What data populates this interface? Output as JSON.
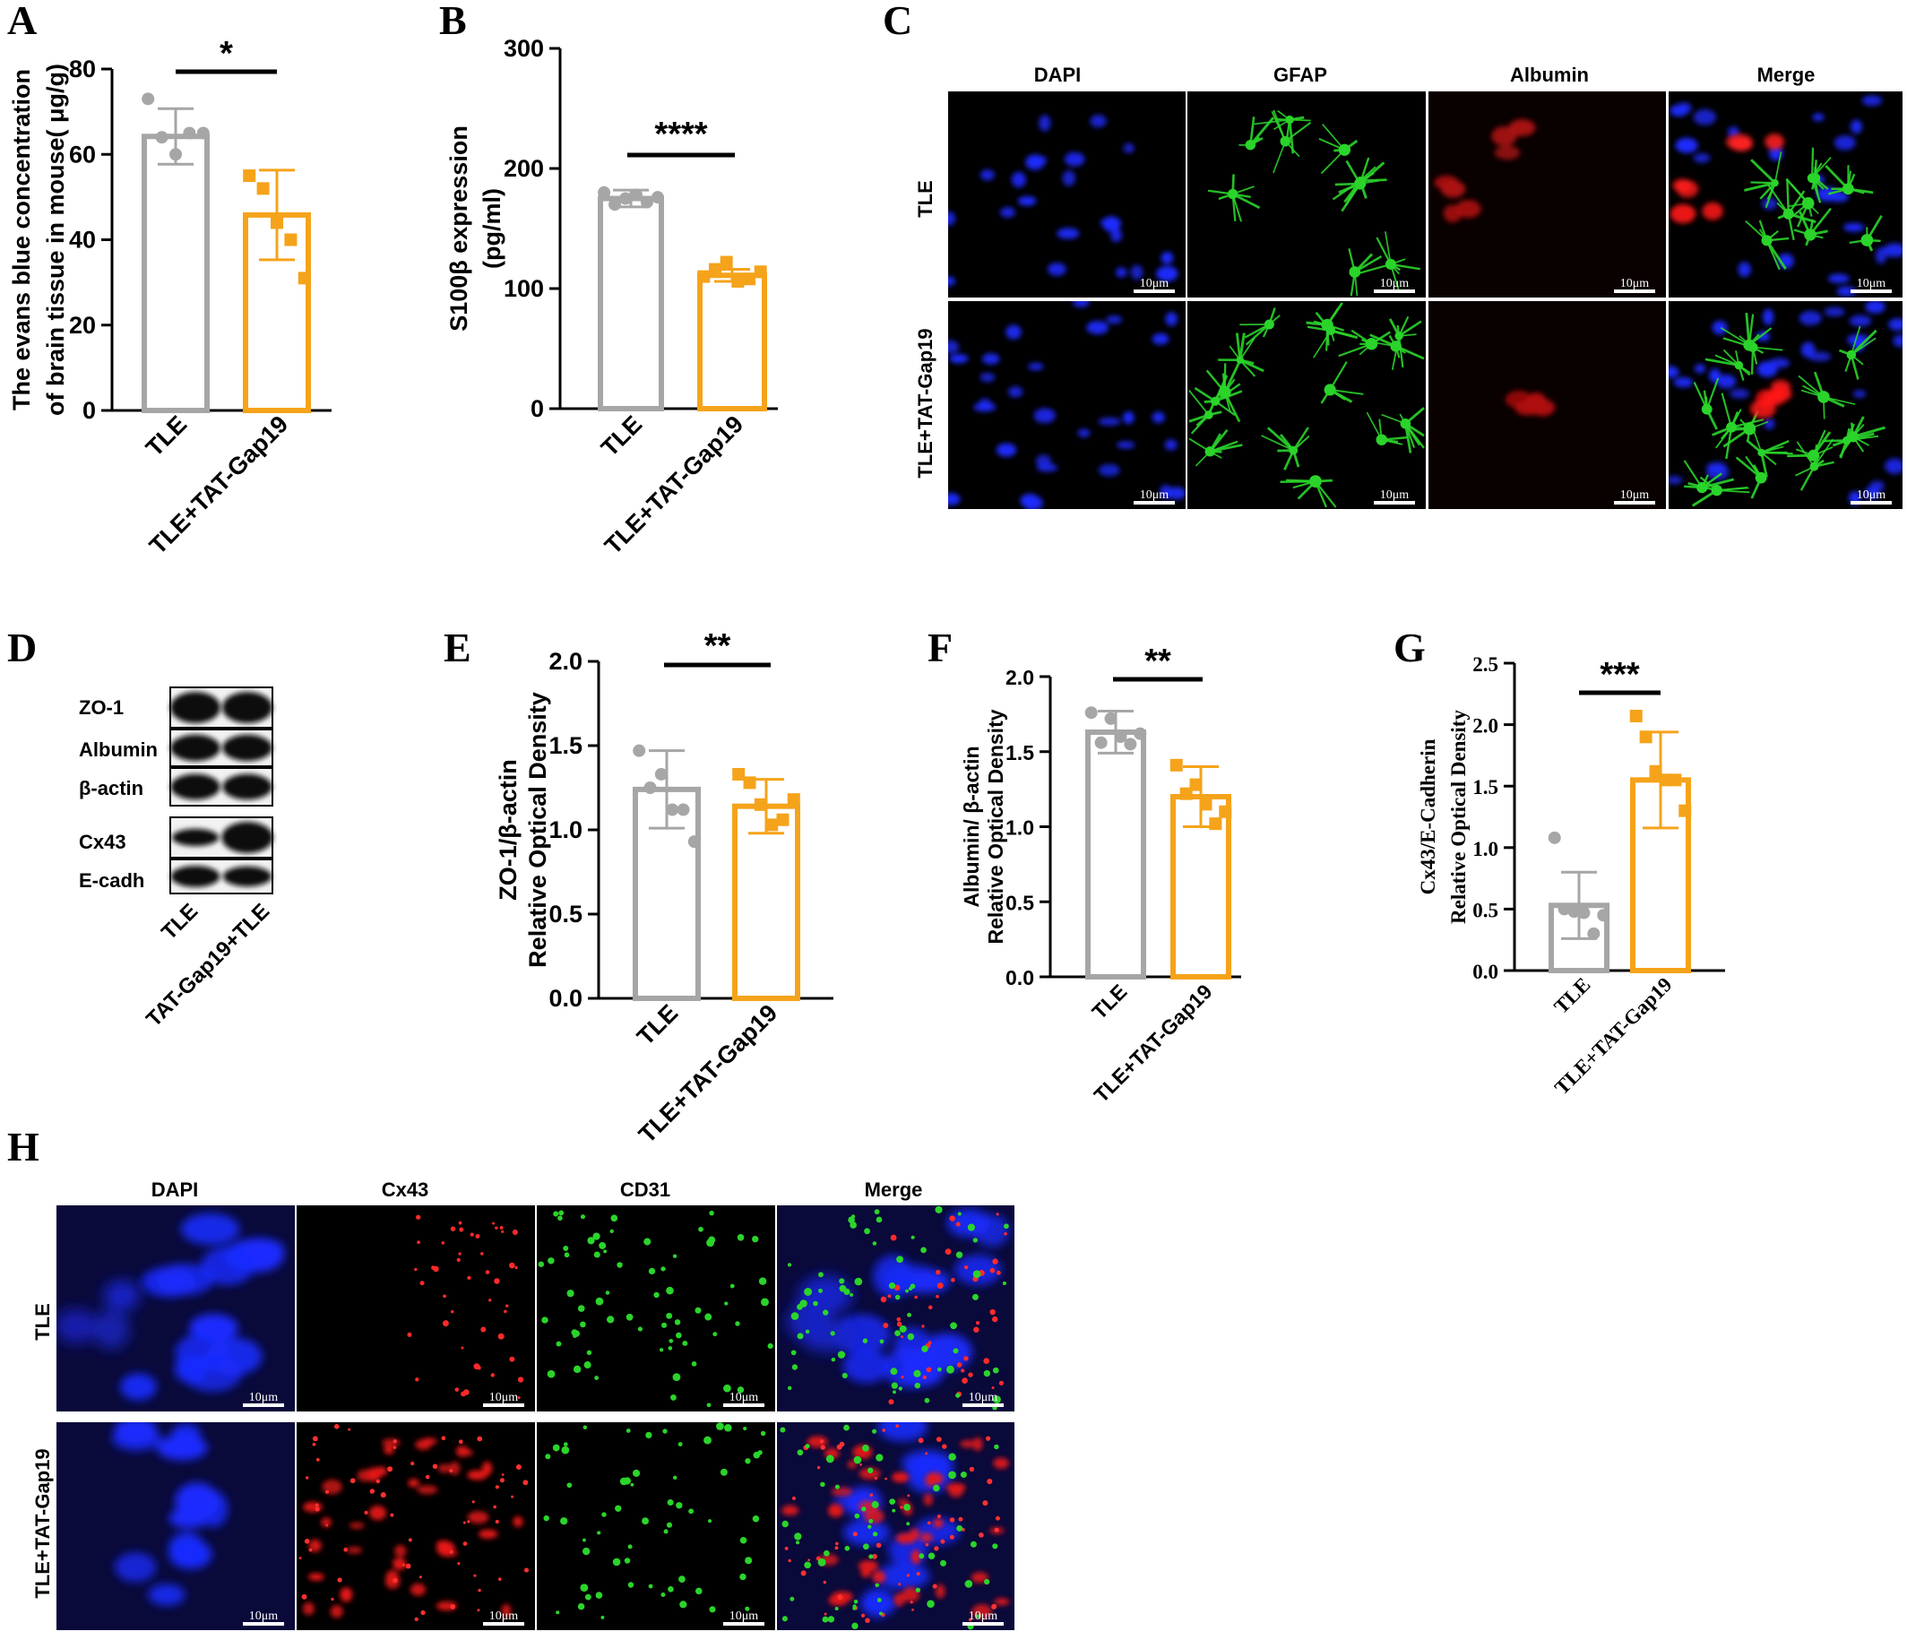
{
  "panel_letters": [
    "A",
    "B",
    "C",
    "D",
    "E",
    "F",
    "G",
    "H"
  ],
  "colors": {
    "tle": "#a6a6a6",
    "treat": "#f5a31a",
    "axis": "#000000"
  },
  "chart_data": [
    {
      "id": "A",
      "type": "bar",
      "ylabel_lines": [
        "The evans blue concentration",
        "of brain tissue in mouse( μg/g)"
      ],
      "yticks": [
        "0",
        "20",
        "40",
        "60",
        "80"
      ],
      "ylim": [
        0,
        80
      ],
      "categories": [
        "TLE",
        "TLE+TAT-Gap19"
      ],
      "values": [
        64.2,
        45.8
      ],
      "errors": [
        6.5,
        10.5
      ],
      "points": [
        [
          73,
          64,
          60,
          65,
          65
        ],
        [
          55,
          52,
          44,
          40,
          31
        ]
      ],
      "significance": "*"
    },
    {
      "id": "B",
      "type": "bar",
      "ylabel_lines": [
        "S100β expression",
        "(pg/ml)"
      ],
      "yticks": [
        "0",
        "100",
        "200",
        "300"
      ],
      "ylim": [
        0,
        300
      ],
      "categories": [
        "TLE",
        "TLE+TAT-Gap19"
      ],
      "values": [
        175,
        111
      ],
      "errors": [
        7,
        5
      ],
      "points": [
        [
          180,
          170,
          175,
          178,
          172,
          176
        ],
        [
          110,
          116,
          122,
          106,
          108,
          114
        ]
      ],
      "significance": "****"
    },
    {
      "id": "E",
      "type": "bar",
      "ylabel_lines": [
        "ZO-1/β-actin",
        "Relative Optical Density"
      ],
      "yticks": [
        "0.0",
        "0.5",
        "1.0",
        "1.5",
        "2.0"
      ],
      "ylim": [
        0,
        2.0
      ],
      "categories": [
        "TLE",
        "TLE+TAT-Gap19"
      ],
      "values": [
        1.24,
        1.14
      ],
      "errors": [
        0.23,
        0.16
      ],
      "points": [
        [
          1.47,
          1.25,
          1.33,
          1.12,
          1.12,
          0.93
        ],
        [
          1.33,
          1.28,
          1.15,
          1.03,
          1.06,
          1.18
        ]
      ],
      "significance": "**"
    },
    {
      "id": "F",
      "type": "bar",
      "ylabel_lines": [
        "Albumin/ β-actin",
        "Relative Optical Density"
      ],
      "yticks": [
        "0.0",
        "0.5",
        "1.0",
        "1.5",
        "2.0"
      ],
      "ylim": [
        0,
        2.0
      ],
      "categories": [
        "TLE",
        "TLE+TAT-Gap19"
      ],
      "values": [
        1.63,
        1.2
      ],
      "errors": [
        0.14,
        0.2
      ],
      "points": [
        [
          1.76,
          1.56,
          1.72,
          1.6,
          1.55,
          1.62
        ],
        [
          1.41,
          1.22,
          1.28,
          1.15,
          1.02,
          1.1
        ]
      ],
      "significance": "**"
    },
    {
      "id": "G",
      "type": "bar",
      "ylabel_lines": [
        "Cx43/E-Cadherin",
        "Relative Optical Density"
      ],
      "yticks": [
        "0.0",
        "0.5",
        "1.0",
        "1.5",
        "2.0",
        "2.5"
      ],
      "ylim": [
        0,
        2.5
      ],
      "categories": [
        "TLE",
        "TLE+TAT-Gap19"
      ],
      "values": [
        0.53,
        1.55
      ],
      "errors": [
        0.27,
        0.39
      ],
      "points": [
        [
          1.08,
          0.5,
          0.48,
          0.47,
          0.3,
          0.45
        ],
        [
          2.07,
          1.9,
          1.62,
          1.55,
          1.55,
          1.3
        ]
      ],
      "significance": "***"
    }
  ],
  "micrograph_C": {
    "columns": [
      "DAPI",
      "GFAP",
      "Albumin",
      "Merge"
    ],
    "rows": [
      "TLE",
      "TLE+TAT-Gap19"
    ],
    "scale_bar": "10μm"
  },
  "micrograph_H": {
    "columns": [
      "DAPI",
      "Cx43",
      "CD31",
      "Merge"
    ],
    "rows": [
      "TLE",
      "TLE+TAT-Gap19"
    ],
    "scale_bar": "10μm"
  },
  "western_D": {
    "bands": [
      "ZO-1",
      "Albumin",
      "β-actin",
      "Cx43",
      "E-cadh"
    ],
    "lanes": [
      "TLE",
      "TAT-Gap19+TLE"
    ]
  }
}
